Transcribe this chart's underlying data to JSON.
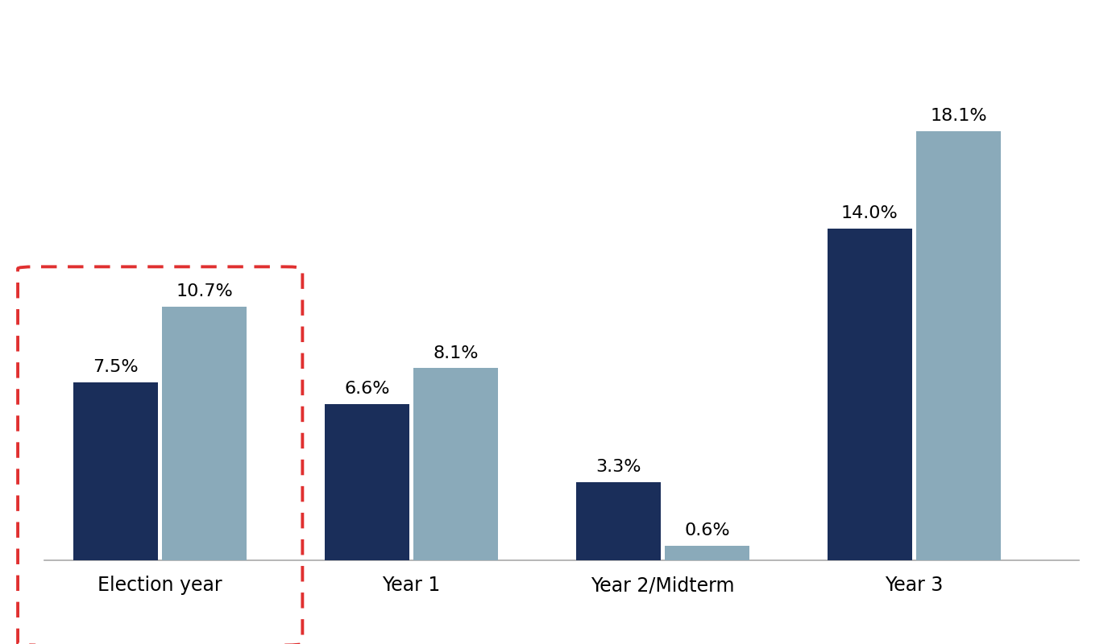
{
  "categories": [
    "Election year",
    "Year 1",
    "Year 2/Midterm",
    "Year 3"
  ],
  "dark_values": [
    7.5,
    6.6,
    3.3,
    14.0
  ],
  "light_values": [
    10.7,
    8.1,
    0.6,
    18.1
  ],
  "dark_color": "#1a2e5a",
  "light_color": "#8aaaba",
  "bar_width": 0.38,
  "background_color": "#ffffff",
  "value_fontsize": 16,
  "xlabel_fontsize": 17,
  "dashed_box_color": "#e03030",
  "ylim": [
    0,
    22
  ],
  "x_positions": [
    0.42,
    1.55,
    2.68,
    3.81
  ],
  "xlim": [
    -0.1,
    4.55
  ]
}
